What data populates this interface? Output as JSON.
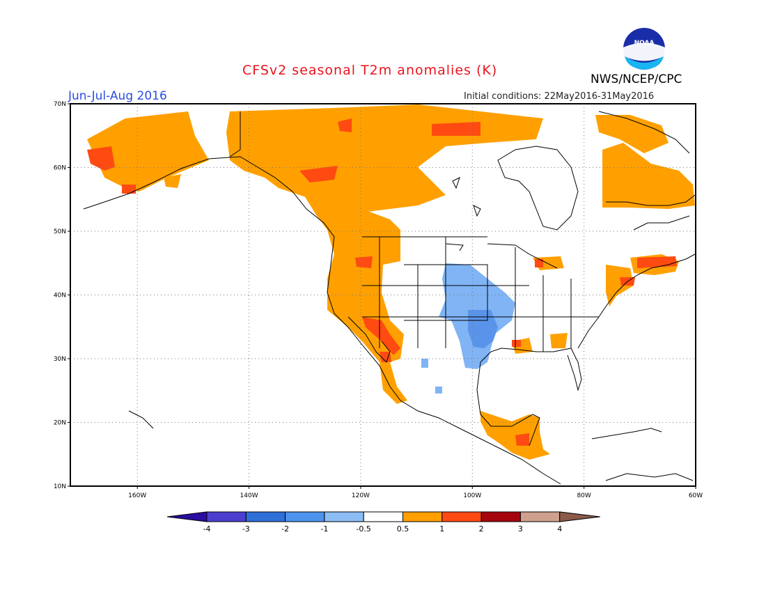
{
  "header": {
    "title": "CFSv2 seasonal T2m anomalies (K)",
    "season": "Jun-Jul-Aug 2016",
    "initial_conditions": "Initial conditions: 22May2016-31May2016",
    "agency": "NWS/NCEP/CPC",
    "logo_text": "NOAA"
  },
  "map": {
    "lon_ticks": [
      "160W",
      "140W",
      "120W",
      "100W",
      "80W",
      "60W"
    ],
    "lat_ticks": [
      "70N",
      "60N",
      "50N",
      "40N",
      "30N",
      "20N",
      "10N"
    ],
    "lon_range": [
      -172,
      -60
    ],
    "lat_range": [
      10,
      70
    ],
    "gridlines": true
  },
  "legend": {
    "labels": [
      "-4",
      "-3",
      "-2",
      "-1",
      "-0.5",
      "0.5",
      "1",
      "2",
      "3",
      "4"
    ],
    "colors": [
      "#2a0da0",
      "#4c3fcf",
      "#2f6fd8",
      "#4d93ee",
      "#8cbdf5",
      "#ffffff",
      "#ff9f00",
      "#ff4a12",
      "#a6050e",
      "#cfa08e",
      "#8b5a4a"
    ]
  },
  "colors": {
    "warm_light": "#ffa000",
    "warm_mid": "#ff4a12",
    "cool_light": "#80b4f5",
    "cool_mid": "#5a94ea",
    "title": "#e8141c",
    "season": "#2b4de0"
  }
}
